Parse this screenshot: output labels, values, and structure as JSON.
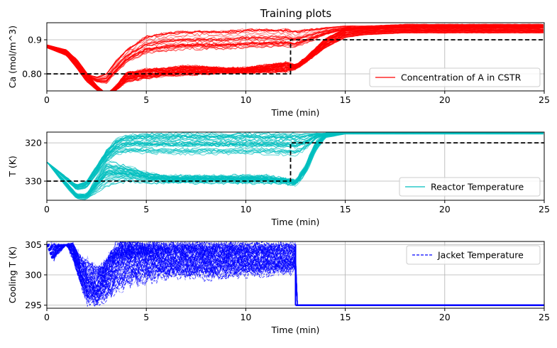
{
  "title": "Training plots",
  "chart_data": [
    {
      "type": "line",
      "title": "Training plots",
      "xlabel": "Time (min)",
      "ylabel": "Ca (mol/m^3)",
      "xlim": [
        0,
        25
      ],
      "ylim": [
        0.75,
        0.95
      ],
      "xticks": [
        0,
        5,
        10,
        15,
        20,
        25
      ],
      "yticks": [
        0.8,
        0.9
      ],
      "ytick_labels": [
        "0.80",
        "0.9"
      ],
      "grid": true,
      "legend": {
        "placement": "lower-right",
        "entries": [
          {
            "label": "Concentration of A in CSTR",
            "color": "#ff0000",
            "style": "solid"
          }
        ]
      },
      "series": [
        {
          "name": "Concentration of A in CSTR",
          "color": "#ff0000",
          "description_kind": "ensemble",
          "x": [
            0,
            1,
            1.5,
            2,
            2.5,
            3,
            3.5,
            4,
            5,
            6,
            7,
            8,
            9,
            10,
            11,
            12,
            12.5,
            13,
            14,
            15,
            16,
            18,
            20,
            22,
            25
          ],
          "upper_band": [
            0.885,
            0.87,
            0.84,
            0.8,
            0.79,
            0.8,
            0.84,
            0.87,
            0.91,
            0.92,
            0.925,
            0.925,
            0.925,
            0.93,
            0.93,
            0.93,
            0.925,
            0.93,
            0.935,
            0.94,
            0.94,
            0.945,
            0.945,
            0.945,
            0.945
          ],
          "main_band": [
            0.88,
            0.86,
            0.83,
            0.79,
            0.76,
            0.74,
            0.76,
            0.79,
            0.8,
            0.805,
            0.81,
            0.81,
            0.81,
            0.81,
            0.815,
            0.82,
            0.82,
            0.84,
            0.89,
            0.92,
            0.925,
            0.93,
            0.93,
            0.93,
            0.93
          ],
          "lower_band": [
            0.875,
            0.85,
            0.81,
            0.77,
            0.75,
            0.74,
            0.75,
            0.77,
            0.78,
            0.79,
            0.79,
            0.795,
            0.8,
            0.8,
            0.8,
            0.8,
            0.81,
            0.83,
            0.87,
            0.9,
            0.91,
            0.915,
            0.915,
            0.915,
            0.915
          ]
        }
      ],
      "setpoint": {
        "color": "#000000",
        "style": "dashed",
        "x": [
          0,
          12.25,
          12.25,
          25
        ],
        "y": [
          0.8,
          0.8,
          0.9,
          0.9
        ]
      }
    },
    {
      "type": "line",
      "title": "",
      "xlabel": "Time (min)",
      "ylabel": "T (K)",
      "xlim": [
        0,
        25
      ],
      "ylim": [
        335,
        317.2
      ],
      "xticks": [
        0,
        5,
        10,
        15,
        20,
        25
      ],
      "yticks": [
        320,
        330
      ],
      "ytick_labels": [
        "320",
        "330"
      ],
      "inverted_y": true,
      "grid": true,
      "legend": {
        "placement": "lower-right",
        "entries": [
          {
            "label": "Reactor Temperature",
            "color": "#00bfbf",
            "style": "solid"
          }
        ]
      },
      "series": [
        {
          "name": "Reactor Temperature",
          "color": "#00bfbf",
          "description_kind": "ensemble",
          "x": [
            0,
            0.5,
            1,
            1.5,
            2,
            2.5,
            3,
            3.5,
            4,
            5,
            6,
            7,
            8,
            9,
            10,
            11,
            12,
            12.5,
            13,
            13.5,
            14,
            15,
            16,
            18,
            20,
            22,
            25
          ],
          "upper_band": [
            325,
            327,
            329,
            331,
            330,
            326,
            322,
            319,
            318,
            317.5,
            317.5,
            317.5,
            317.5,
            317.5,
            317.5,
            317.5,
            317.5,
            317.5,
            317.5,
            317.5,
            317.5,
            317.5,
            317.5,
            317.5,
            317.5,
            317.5,
            317.5
          ],
          "main_band": [
            325,
            328,
            331,
            334,
            334,
            331,
            328,
            328,
            328,
            329,
            329.5,
            329.5,
            329.5,
            329.5,
            329.5,
            329.5,
            330,
            330.5,
            327,
            321,
            318,
            317.5,
            317.5,
            317.5,
            317.5,
            317.5,
            317.5
          ],
          "lower_band": [
            325,
            328.5,
            332,
            335,
            335,
            334,
            333,
            332,
            331,
            331,
            331,
            331,
            331,
            331,
            331,
            331,
            331,
            331.5,
            329,
            323,
            319,
            317.8,
            317.8,
            317.8,
            317.8,
            317.8,
            317.8
          ]
        }
      ],
      "setpoint": {
        "color": "#000000",
        "style": "dashed",
        "x": [
          0,
          12.25,
          12.25,
          25
        ],
        "y": [
          330,
          330,
          320,
          320
        ]
      }
    },
    {
      "type": "line",
      "title": "",
      "xlabel": "Time (min)",
      "ylabel": "Cooling T (K)",
      "xlim": [
        0,
        25
      ],
      "ylim": [
        294.5,
        305.5
      ],
      "xticks": [
        0,
        5,
        10,
        15,
        20,
        25
      ],
      "yticks": [
        295,
        300,
        305
      ],
      "ytick_labels": [
        "295",
        "300",
        "305"
      ],
      "grid": true,
      "legend": {
        "placement": "upper-right",
        "entries": [
          {
            "label": "Jacket Temperature",
            "color": "#0000ff",
            "style": "dashed"
          }
        ]
      },
      "series": [
        {
          "name": "Jacket Temperature",
          "color": "#0000ff",
          "style": "dashed",
          "description_kind": "ensemble",
          "x": [
            0,
            0.3,
            0.5,
            1,
            1.3,
            1.7,
            2,
            2.5,
            3,
            3.5,
            4,
            5,
            6,
            7,
            8,
            9,
            10,
            11,
            12,
            12.5,
            12.55,
            25
          ],
          "upper_band": [
            305,
            305,
            305,
            305,
            305,
            303,
            302,
            301,
            302,
            305,
            305,
            305,
            305,
            305,
            305,
            305,
            305,
            305,
            305,
            305,
            295,
            295
          ],
          "main_band": [
            305,
            303,
            304,
            305,
            304,
            300,
            298,
            297,
            299,
            301,
            302,
            302,
            302,
            302,
            302,
            302,
            302,
            302,
            302,
            302,
            295,
            295
          ],
          "lower_band": [
            305,
            302,
            303,
            305,
            302,
            298,
            295,
            295,
            295,
            296,
            297,
            298,
            299,
            299,
            299,
            299,
            299.5,
            299.5,
            300,
            300,
            295,
            295
          ],
          "floor_value": 295
        }
      ]
    }
  ]
}
